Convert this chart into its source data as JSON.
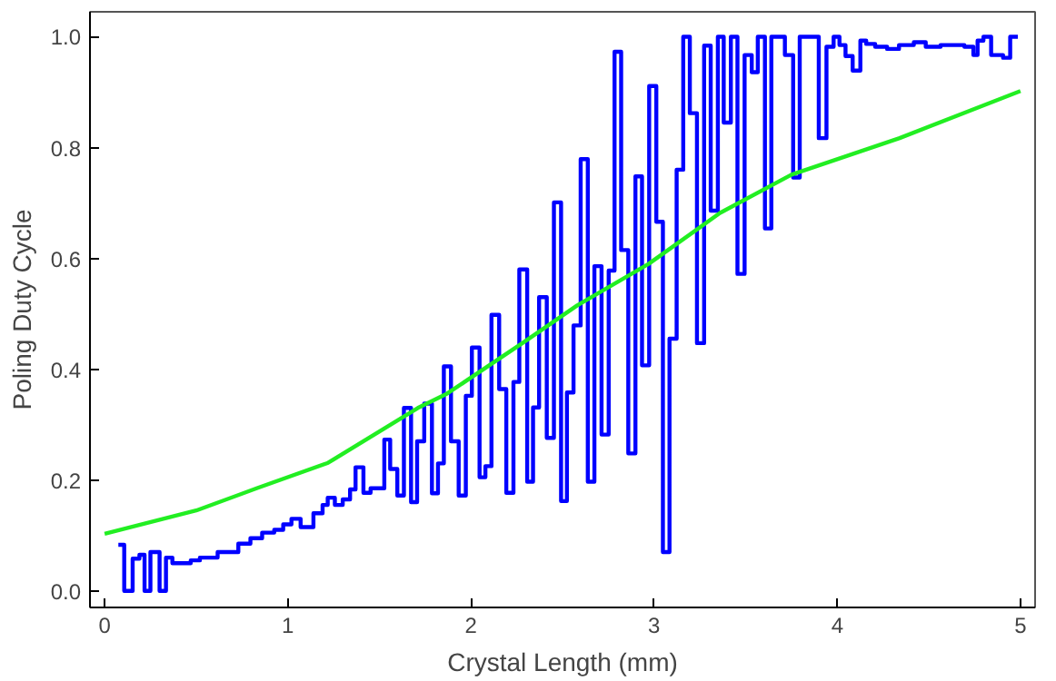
{
  "chart_data": {
    "type": "step",
    "xlabel": "Crystal Length (mm)",
    "ylabel": "Poling Duty Cycle",
    "xlim": [
      -0.08,
      5.08
    ],
    "ylim": [
      -0.03,
      1.045
    ],
    "xticks": [
      0,
      1,
      2,
      3,
      4,
      5
    ],
    "yticks": [
      {
        "value": 0,
        "label": "0.0"
      },
      {
        "value": 0.2,
        "label": "0.2"
      },
      {
        "value": 0.4,
        "label": "0.4"
      },
      {
        "value": 0.6,
        "label": "0.6"
      },
      {
        "value": 0.8,
        "label": "0.8"
      },
      {
        "value": 1,
        "label": "1.0"
      }
    ],
    "grid": false,
    "series": [
      {
        "color": "#0000ff",
        "x": [
          0.075,
          0.107,
          0.153,
          0.19,
          0.218,
          0.25,
          0.3,
          0.335,
          0.37,
          0.47,
          0.52,
          0.617,
          0.73,
          0.796,
          0.86,
          0.926,
          0.975,
          1.02,
          1.07,
          1.14,
          1.19,
          1.218,
          1.257,
          1.3,
          1.34,
          1.37,
          1.413,
          1.452,
          1.527,
          1.559,
          1.598,
          1.634,
          1.673,
          1.706,
          1.745,
          1.787,
          1.82,
          1.852,
          1.891,
          1.933,
          1.972,
          2.005,
          2.047,
          2.079,
          2.112,
          2.154,
          2.193,
          2.232,
          2.264,
          2.307,
          2.339,
          2.372,
          2.414,
          2.453,
          2.492,
          2.524,
          2.56,
          2.599,
          2.638,
          2.674,
          2.713,
          2.752,
          2.784,
          2.82,
          2.859,
          2.898,
          2.934,
          2.973,
          3.012,
          3.048,
          3.084,
          3.123,
          3.159,
          3.195,
          3.234,
          3.273,
          3.309,
          3.348,
          3.38,
          3.419,
          3.455,
          3.494,
          3.533,
          3.566,
          3.605,
          3.64,
          3.714,
          3.759,
          3.795,
          3.899,
          3.941,
          3.98,
          4.012,
          4.045,
          4.084,
          4.126,
          4.158,
          4.207,
          4.272,
          4.337,
          4.418,
          4.483,
          4.564,
          4.694,
          4.743,
          4.766,
          4.798,
          4.84,
          4.905,
          4.944,
          4.986
        ],
        "values": [
          0.083,
          0,
          0.058,
          0.065,
          0,
          0.07,
          0,
          0.06,
          0.05,
          0.055,
          0.06,
          0.07,
          0.085,
          0.095,
          0.105,
          0.11,
          0.12,
          0.13,
          0.115,
          0.14,
          0.155,
          0.168,
          0.155,
          0.165,
          0.183,
          0.223,
          0.177,
          0.185,
          0.273,
          0.22,
          0.172,
          0.33,
          0.16,
          0.27,
          0.338,
          0.176,
          0.23,
          0.405,
          0.27,
          0.172,
          0.352,
          0.439,
          0.205,
          0.225,
          0.498,
          0.364,
          0.177,
          0.377,
          0.58,
          0.197,
          0.331,
          0.53,
          0.276,
          0.701,
          0.162,
          0.358,
          0.479,
          0.779,
          0.197,
          0.586,
          0.282,
          0.578,
          0.973,
          0.615,
          0.248,
          0.748,
          0.407,
          0.911,
          0.666,
          0.07,
          0.455,
          0.76,
          1.0,
          0.862,
          0.447,
          0.984,
          0.686,
          1.0,
          0.845,
          1.0,
          0.572,
          0.967,
          0.936,
          1.0,
          0.654,
          1.0,
          0.967,
          0.746,
          1.0,
          0.817,
          0.982,
          1.0,
          0.985,
          0.965,
          0.939,
          0.993,
          0.987,
          0.982,
          0.978,
          0.985,
          0.99,
          0.982,
          0.985,
          0.982,
          0.967,
          0.993,
          1.0,
          0.967,
          0.962,
          1.0,
          1.0
        ]
      },
      {
        "type": "line",
        "color": "#22ee22",
        "x": [
          0,
          0.5,
          0.83,
          1.22,
          1.71,
          1.87,
          2.29,
          2.58,
          2.97,
          3.36,
          3.75,
          4.34,
          5
        ],
        "values": [
          0.103,
          0.145,
          0.185,
          0.231,
          0.33,
          0.356,
          0.449,
          0.515,
          0.59,
          0.682,
          0.751,
          0.817,
          0.902
        ]
      }
    ]
  }
}
